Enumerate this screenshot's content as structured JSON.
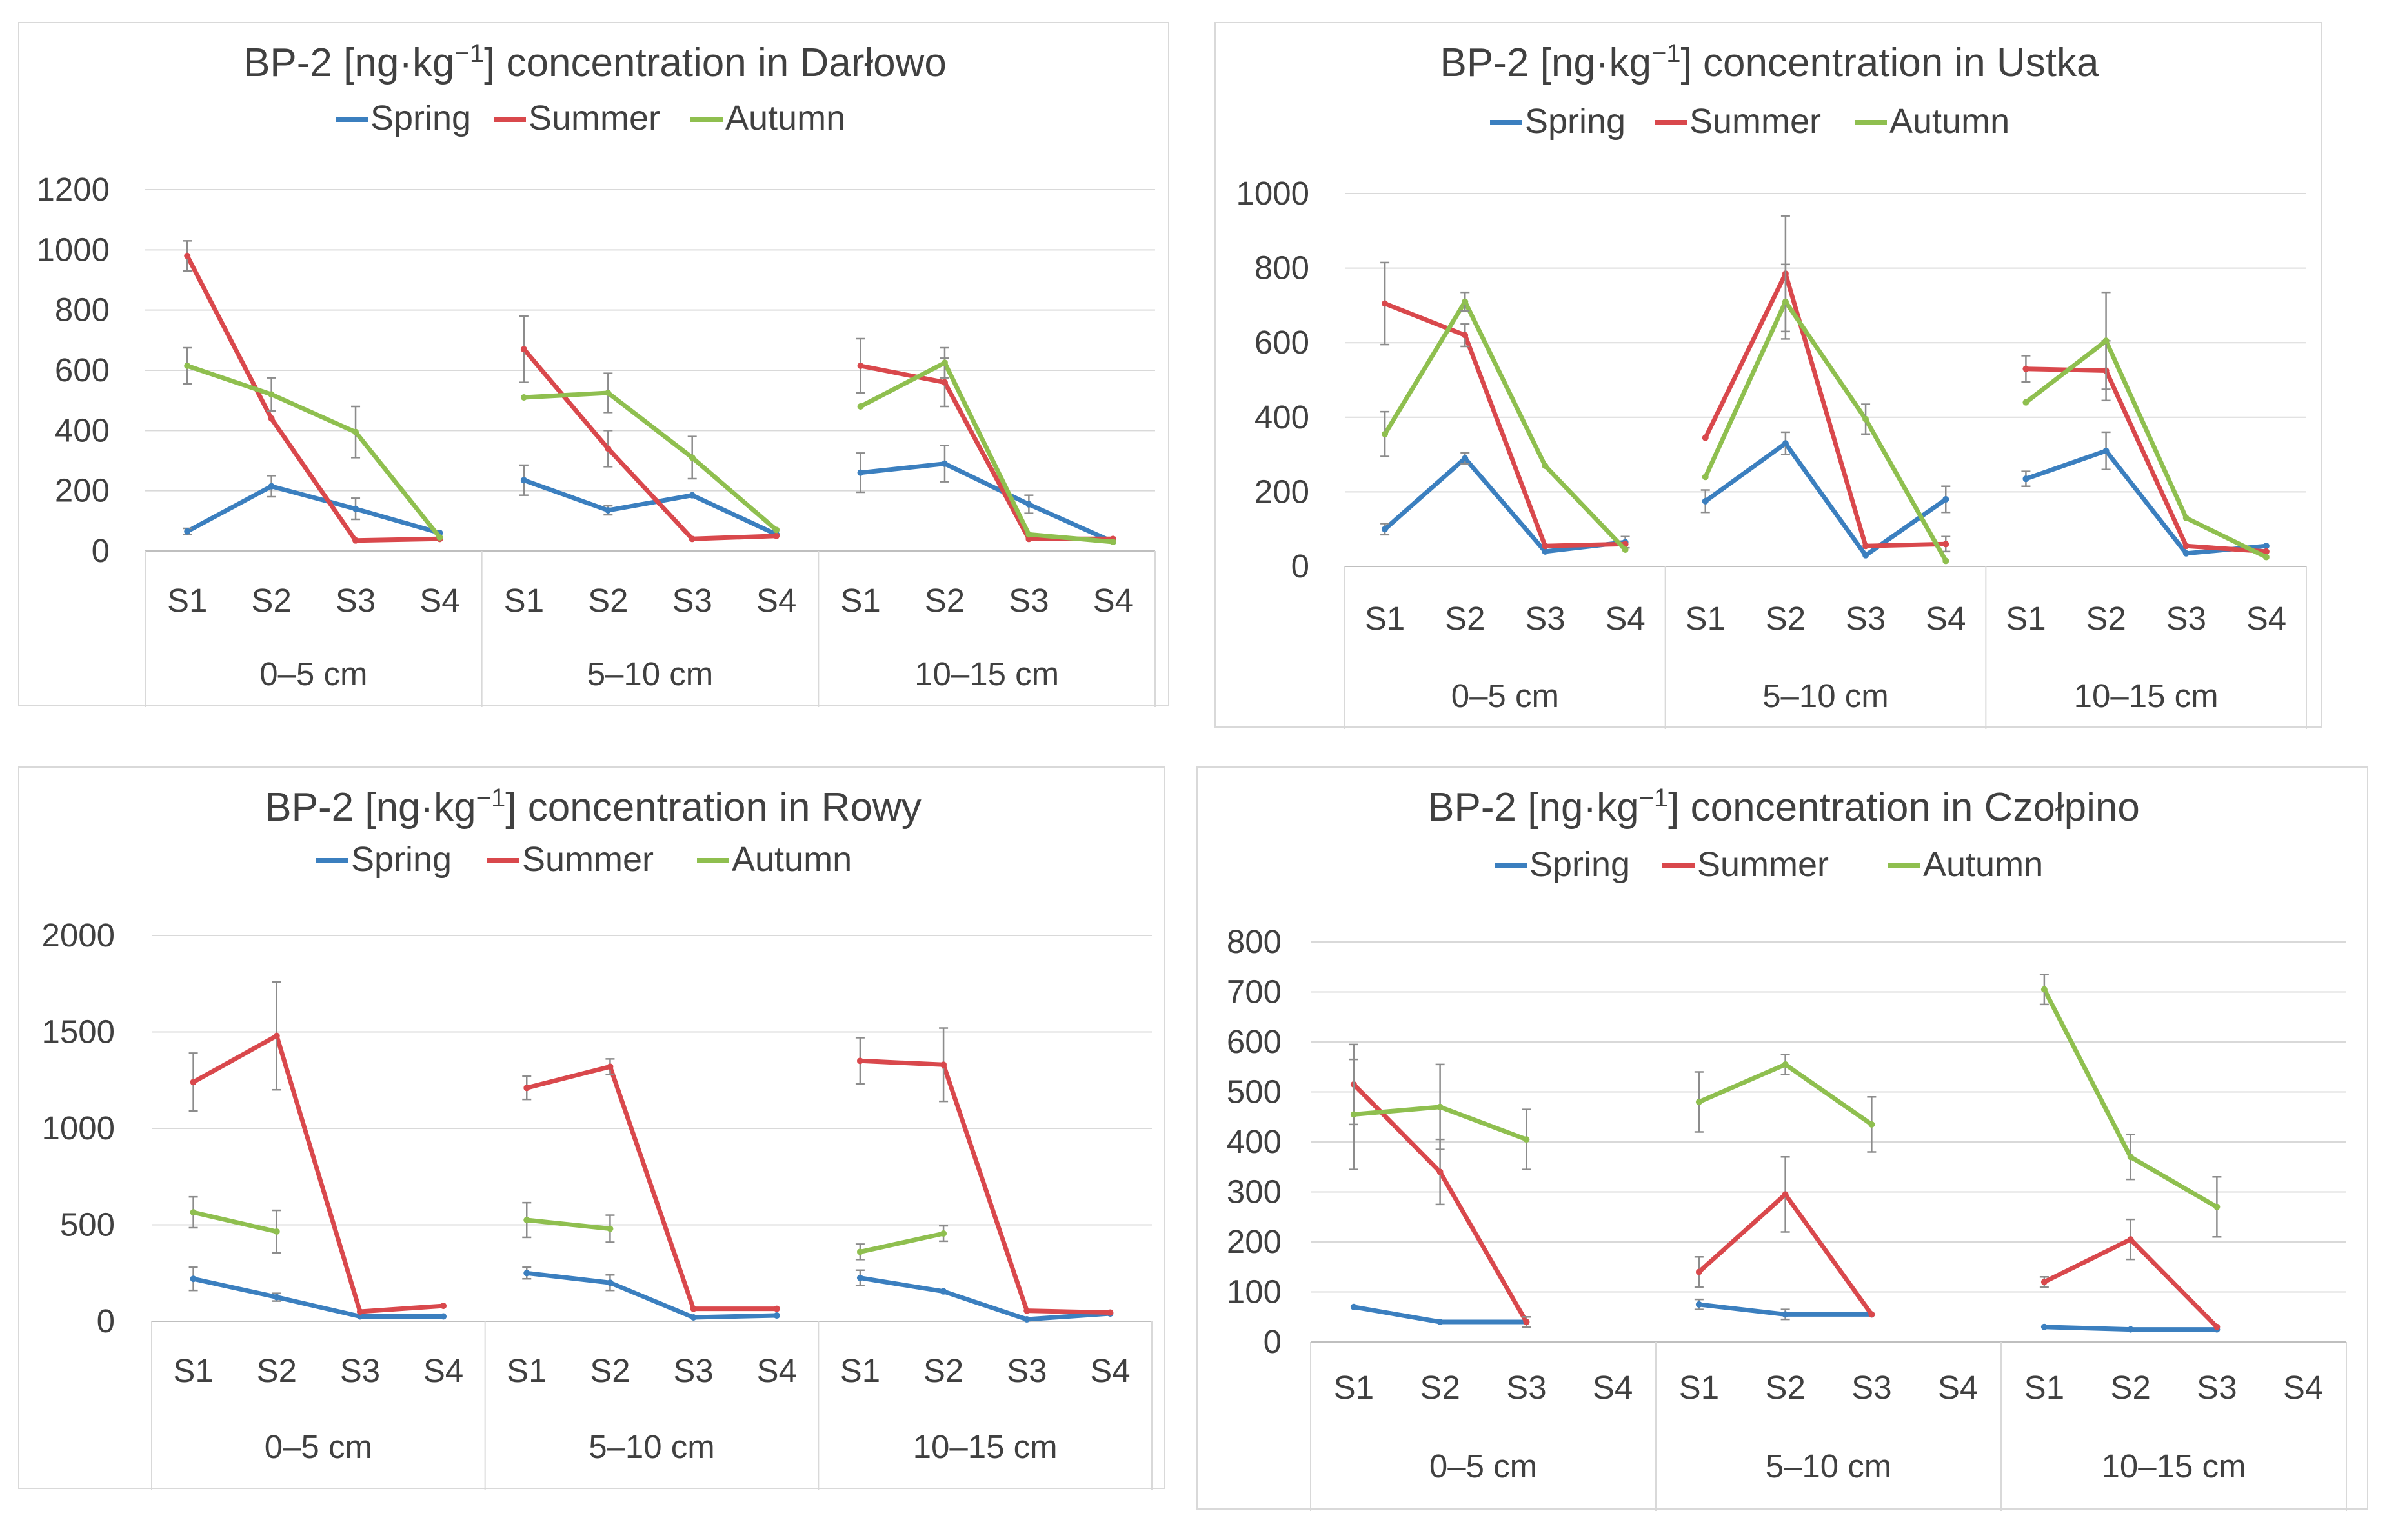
{
  "colors": {
    "Spring": "#3b7fbf",
    "Summer": "#d9484c",
    "Autumn": "#8fbf4f",
    "grid": "#d9d9d9",
    "errorbar": "#8c8c8c"
  },
  "chart_data": [
    {
      "type": "line",
      "title_prefix": "BP-2 [ng·kg",
      "title_sup": "−1",
      "title_suffix": "] concentration in Darłowo",
      "legend_position": "top",
      "groups": [
        "0–5 cm",
        "5–10 cm",
        "10–15 cm"
      ],
      "sites": [
        "S1",
        "S2",
        "S3",
        "S4"
      ],
      "ylim": [
        0,
        1200
      ],
      "yticks": [
        0,
        200,
        400,
        600,
        800,
        1000,
        1200
      ],
      "grid": true,
      "series": [
        {
          "name": "Spring",
          "values": [
            [
              65,
              215,
              140,
              60
            ],
            [
              235,
              135,
              185,
              55
            ],
            [
              260,
              290,
              155,
              30
            ]
          ],
          "errors": [
            [
              10,
              35,
              35,
              0
            ],
            [
              50,
              15,
              0,
              0
            ],
            [
              65,
              60,
              30,
              0
            ]
          ]
        },
        {
          "name": "Summer",
          "values": [
            [
              980,
              440,
              35,
              40
            ],
            [
              670,
              340,
              40,
              50
            ],
            [
              615,
              560,
              40,
              40
            ]
          ],
          "errors": [
            [
              50,
              0,
              0,
              0
            ],
            [
              110,
              60,
              0,
              0
            ],
            [
              90,
              80,
              0,
              0
            ]
          ]
        },
        {
          "name": "Autumn",
          "values": [
            [
              615,
              520,
              395,
              45
            ],
            [
              510,
              525,
              310,
              70
            ],
            [
              480,
              625,
              55,
              30
            ]
          ],
          "errors": [
            [
              60,
              55,
              85,
              0
            ],
            [
              0,
              65,
              70,
              0
            ],
            [
              0,
              50,
              0,
              0
            ]
          ]
        }
      ]
    },
    {
      "type": "line",
      "title_prefix": "BP-2 [ng·kg",
      "title_sup": "−1",
      "title_suffix": "] concentration in Ustka",
      "legend_position": "top",
      "groups": [
        "0–5 cm",
        "5–10 cm",
        "10–15 cm"
      ],
      "sites": [
        "S1",
        "S2",
        "S3",
        "S4"
      ],
      "ylim": [
        0,
        1000
      ],
      "yticks": [
        0,
        200,
        400,
        600,
        800,
        1000
      ],
      "grid": true,
      "series": [
        {
          "name": "Spring",
          "values": [
            [
              100,
              290,
              40,
              65
            ],
            [
              175,
              330,
              30,
              180
            ],
            [
              235,
              310,
              35,
              55
            ]
          ],
          "errors": [
            [
              15,
              15,
              0,
              15
            ],
            [
              30,
              30,
              0,
              35
            ],
            [
              20,
              50,
              0,
              0
            ]
          ]
        },
        {
          "name": "Summer",
          "values": [
            [
              705,
              620,
              55,
              60
            ],
            [
              345,
              785,
              55,
              60
            ],
            [
              530,
              525,
              55,
              40
            ]
          ],
          "errors": [
            [
              110,
              30,
              0,
              0
            ],
            [
              0,
              155,
              0,
              20
            ],
            [
              35,
              80,
              0,
              0
            ]
          ]
        },
        {
          "name": "Autumn",
          "values": [
            [
              355,
              710,
              270,
              45
            ],
            [
              240,
              710,
              395,
              15
            ],
            [
              440,
              605,
              130,
              25
            ]
          ],
          "errors": [
            [
              60,
              25,
              0,
              0
            ],
            [
              0,
              100,
              40,
              0
            ],
            [
              0,
              130,
              0,
              0
            ]
          ]
        }
      ]
    },
    {
      "type": "line",
      "title_prefix": "BP-2 [ng·kg",
      "title_sup": "−1",
      "title_suffix": "] concentration in Rowy",
      "legend_position": "top",
      "groups": [
        "0–5 cm",
        "5–10 cm",
        "10–15 cm"
      ],
      "sites": [
        "S1",
        "S2",
        "S3",
        "S4"
      ],
      "ylim": [
        0,
        2000
      ],
      "yticks": [
        0,
        500,
        1000,
        1500,
        2000
      ],
      "grid": true,
      "series": [
        {
          "name": "Spring",
          "values": [
            [
              220,
              125,
              25,
              25
            ],
            [
              250,
              200,
              20,
              30
            ],
            [
              225,
              155,
              10,
              40
            ]
          ],
          "errors": [
            [
              60,
              20,
              0,
              0
            ],
            [
              30,
              40,
              0,
              0
            ],
            [
              40,
              0,
              0,
              0
            ]
          ]
        },
        {
          "name": "Summer",
          "values": [
            [
              1240,
              1480,
              50,
              80
            ],
            [
              1210,
              1320,
              65,
              65
            ],
            [
              1350,
              1330,
              55,
              45
            ]
          ],
          "errors": [
            [
              150,
              280,
              0,
              0
            ],
            [
              60,
              40,
              0,
              0
            ],
            [
              120,
              190,
              0,
              0
            ]
          ]
        },
        {
          "name": "Autumn",
          "values": [
            [
              565,
              465,
              null,
              null
            ],
            [
              525,
              480,
              null,
              null
            ],
            [
              360,
              455,
              null,
              null
            ]
          ],
          "errors": [
            [
              80,
              110,
              0,
              0
            ],
            [
              90,
              70,
              0,
              0
            ],
            [
              40,
              40,
              0,
              0
            ]
          ]
        }
      ]
    },
    {
      "type": "line",
      "title_prefix": "BP-2 [ng·kg",
      "title_sup": "−1",
      "title_suffix": "] concentration in Czołpino",
      "legend_position": "top",
      "groups": [
        "0–5 cm",
        "5–10 cm",
        "10–15 cm"
      ],
      "sites": [
        "S1",
        "S2",
        "S3",
        "S4"
      ],
      "ylim": [
        0,
        800
      ],
      "yticks": [
        0,
        100,
        200,
        300,
        400,
        500,
        600,
        700,
        800
      ],
      "grid": true,
      "series": [
        {
          "name": "Spring",
          "values": [
            [
              70,
              40,
              40,
              null
            ],
            [
              75,
              55,
              55,
              null
            ],
            [
              30,
              25,
              25,
              null
            ]
          ],
          "errors": [
            [
              0,
              0,
              0,
              0
            ],
            [
              10,
              10,
              0,
              0
            ],
            [
              0,
              0,
              0,
              0
            ]
          ]
        },
        {
          "name": "Summer",
          "values": [
            [
              515,
              340,
              40,
              null
            ],
            [
              140,
              295,
              55,
              null
            ],
            [
              120,
              205,
              30,
              null
            ]
          ],
          "errors": [
            [
              80,
              65,
              10,
              0
            ],
            [
              30,
              75,
              0,
              0
            ],
            [
              10,
              40,
              0,
              0
            ]
          ]
        },
        {
          "name": "Autumn",
          "values": [
            [
              455,
              470,
              405,
              null
            ],
            [
              480,
              555,
              435,
              null
            ],
            [
              705,
              370,
              270,
              null
            ]
          ],
          "errors": [
            [
              110,
              85,
              60,
              0
            ],
            [
              60,
              20,
              55,
              0
            ],
            [
              30,
              45,
              60,
              0
            ]
          ]
        }
      ]
    }
  ]
}
